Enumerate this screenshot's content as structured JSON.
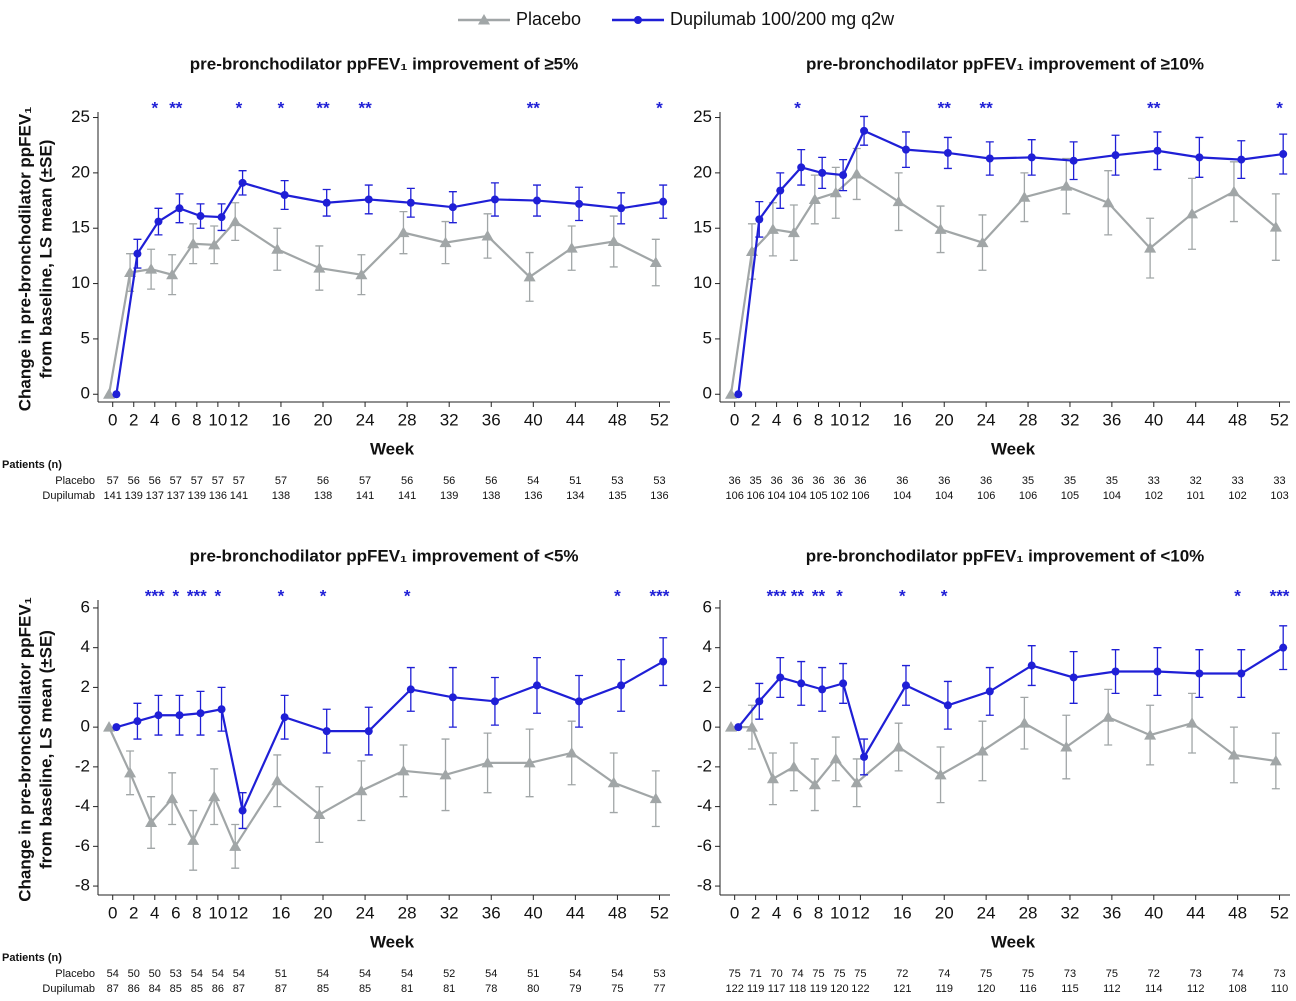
{
  "legend": [
    {
      "name": "Placebo",
      "color": "#a1a6a7",
      "marker": "triangle"
    },
    {
      "name": "Dupilumab 100/200 mg q2w",
      "color": "#1f1fd6",
      "marker": "circle"
    }
  ],
  "chart_data": [
    {
      "type": "line",
      "title": "pre-bronchodilator ppFEV₁ improvement of ≥5%",
      "ylabel": [
        "Change in pre-bronchodilator ppFEV₁",
        "from baseline, LS mean (±SE)"
      ],
      "xlabel": "Week",
      "x": [
        0,
        2,
        4,
        6,
        8,
        10,
        12,
        16,
        20,
        24,
        28,
        32,
        36,
        40,
        44,
        48,
        52
      ],
      "xlim": [
        -1.4,
        53
      ],
      "xticks": [
        0,
        2,
        4,
        6,
        8,
        10,
        12,
        16,
        20,
        24,
        28,
        32,
        36,
        40,
        44,
        48,
        52
      ],
      "ylim": [
        -0.7,
        25.5
      ],
      "yticks": [
        0,
        5,
        10,
        15,
        20,
        25
      ],
      "series": [
        {
          "color": "#a1a6a7",
          "marker": "triangle",
          "values": [
            0,
            11.0,
            11.3,
            10.8,
            13.6,
            13.5,
            15.6,
            13.1,
            11.4,
            10.8,
            14.6,
            13.7,
            14.3,
            10.6,
            13.2,
            13.8,
            11.9
          ],
          "errors": [
            null,
            1.7,
            1.8,
            1.8,
            1.8,
            1.7,
            1.7,
            1.9,
            2.0,
            1.8,
            1.9,
            1.9,
            2.0,
            2.2,
            2.0,
            2.3,
            2.1
          ]
        },
        {
          "color": "#1f1fd6",
          "marker": "circle",
          "values": [
            0,
            12.7,
            15.6,
            16.8,
            16.1,
            16.0,
            19.1,
            18.0,
            17.3,
            17.6,
            17.3,
            16.9,
            17.6,
            17.5,
            17.2,
            16.8,
            17.4
          ],
          "errors": [
            null,
            1.3,
            1.2,
            1.3,
            1.1,
            1.2,
            1.1,
            1.3,
            1.2,
            1.3,
            1.3,
            1.4,
            1.5,
            1.4,
            1.5,
            1.4,
            1.5
          ]
        }
      ],
      "significance": [
        {
          "x": 4,
          "label": "*"
        },
        {
          "x": 6,
          "label": "**"
        },
        {
          "x": 12,
          "label": "*"
        },
        {
          "x": 16,
          "label": "*"
        },
        {
          "x": 20,
          "label": "**"
        },
        {
          "x": 24,
          "label": "**"
        },
        {
          "x": 40,
          "label": "**"
        },
        {
          "x": 52,
          "label": "*"
        }
      ],
      "patients": {
        "title": "Patients (n)",
        "rows": [
          {
            "label": "Placebo",
            "values": [
              57,
              56,
              56,
              57,
              57,
              57,
              57,
              57,
              56,
              57,
              56,
              56,
              56,
              54,
              51,
              53,
              53
            ]
          },
          {
            "label": "Dupilumab",
            "values": [
              141,
              139,
              137,
              137,
              139,
              136,
              141,
              138,
              138,
              141,
              141,
              139,
              138,
              136,
              134,
              135,
              136
            ]
          }
        ]
      }
    },
    {
      "type": "line",
      "title": "pre-bronchodilator ppFEV₁ improvement of ≥10%",
      "xlabel": "Week",
      "x": [
        0,
        2,
        4,
        6,
        8,
        10,
        12,
        16,
        20,
        24,
        28,
        32,
        36,
        40,
        44,
        48,
        52
      ],
      "xlim": [
        -1.4,
        53
      ],
      "xticks": [
        0,
        2,
        4,
        6,
        8,
        10,
        12,
        16,
        20,
        24,
        28,
        32,
        36,
        40,
        44,
        48,
        52
      ],
      "ylim": [
        -0.7,
        25.5
      ],
      "yticks": [
        0,
        5,
        10,
        15,
        20,
        25
      ],
      "series": [
        {
          "color": "#a1a6a7",
          "marker": "triangle",
          "values": [
            0,
            12.9,
            14.9,
            14.6,
            17.6,
            18.2,
            19.9,
            17.4,
            14.9,
            13.7,
            17.8,
            18.8,
            17.3,
            13.2,
            16.3,
            18.3,
            15.1
          ],
          "errors": [
            null,
            2.5,
            2.4,
            2.5,
            2.2,
            2.3,
            2.3,
            2.6,
            2.1,
            2.5,
            2.2,
            2.5,
            2.9,
            2.7,
            3.2,
            2.7,
            3.0
          ]
        },
        {
          "color": "#1f1fd6",
          "marker": "circle",
          "values": [
            0,
            15.8,
            18.4,
            20.5,
            20.0,
            19.8,
            23.8,
            22.1,
            21.8,
            21.3,
            21.4,
            21.1,
            21.6,
            22.0,
            21.4,
            21.2,
            21.7
          ],
          "errors": [
            null,
            1.6,
            1.6,
            1.6,
            1.4,
            1.4,
            1.3,
            1.6,
            1.4,
            1.5,
            1.6,
            1.7,
            1.8,
            1.7,
            1.8,
            1.7,
            1.8
          ]
        }
      ],
      "significance": [
        {
          "x": 6,
          "label": "*"
        },
        {
          "x": 20,
          "label": "**"
        },
        {
          "x": 24,
          "label": "**"
        },
        {
          "x": 40,
          "label": "**"
        },
        {
          "x": 52,
          "label": "*"
        }
      ],
      "patients": {
        "rows": [
          {
            "values": [
              36,
              35,
              36,
              36,
              36,
              36,
              36,
              36,
              36,
              36,
              35,
              35,
              35,
              33,
              32,
              33,
              33
            ]
          },
          {
            "values": [
              106,
              106,
              104,
              104,
              105,
              102,
              106,
              104,
              104,
              106,
              106,
              105,
              104,
              102,
              101,
              102,
              103
            ]
          }
        ]
      }
    },
    {
      "type": "line",
      "title": "pre-bronchodilator ppFEV₁ improvement of <5%",
      "ylabel": [
        "Change in pre-bronchodilator ppFEV₁",
        "from baseline, LS mean (±SE)"
      ],
      "xlabel": "Week",
      "x": [
        0,
        2,
        4,
        6,
        8,
        10,
        12,
        16,
        20,
        24,
        28,
        32,
        36,
        40,
        44,
        48,
        52
      ],
      "xlim": [
        -1.4,
        53
      ],
      "xticks": [
        0,
        2,
        4,
        6,
        8,
        10,
        12,
        16,
        20,
        24,
        28,
        32,
        36,
        40,
        44,
        48,
        52
      ],
      "ylim": [
        -8.45,
        6.4
      ],
      "yticks": [
        -8,
        -6,
        -4,
        -2,
        0,
        2,
        4,
        6
      ],
      "series": [
        {
          "color": "#a1a6a7",
          "marker": "triangle",
          "values": [
            0,
            -2.3,
            -4.8,
            -3.6,
            -5.7,
            -3.5,
            -6.0,
            -2.7,
            -4.4,
            -3.2,
            -2.2,
            -2.4,
            -1.8,
            -1.8,
            -1.3,
            -2.8,
            -3.6
          ],
          "errors": [
            null,
            1.1,
            1.3,
            1.3,
            1.5,
            1.4,
            1.1,
            1.3,
            1.4,
            1.5,
            1.3,
            1.8,
            1.5,
            1.7,
            1.6,
            1.5,
            1.4
          ]
        },
        {
          "color": "#1f1fd6",
          "marker": "circle",
          "values": [
            0,
            0.3,
            0.6,
            0.6,
            0.7,
            0.9,
            -4.2,
            0.5,
            -0.2,
            -0.2,
            1.9,
            1.5,
            1.3,
            2.1,
            1.3,
            2.1,
            3.3
          ],
          "errors": [
            null,
            0.9,
            1.0,
            1.0,
            1.1,
            1.1,
            0.9,
            1.1,
            1.1,
            1.2,
            1.1,
            1.5,
            1.2,
            1.4,
            1.3,
            1.3,
            1.2
          ]
        }
      ],
      "significance": [
        {
          "x": 4,
          "label": "***"
        },
        {
          "x": 6,
          "label": "*"
        },
        {
          "x": 8,
          "label": "***"
        },
        {
          "x": 10,
          "label": "*"
        },
        {
          "x": 16,
          "label": "*"
        },
        {
          "x": 20,
          "label": "*"
        },
        {
          "x": 28,
          "label": "*"
        },
        {
          "x": 48,
          "label": "*"
        },
        {
          "x": 52,
          "label": "***"
        }
      ],
      "patients": {
        "title": "Patients (n)",
        "rows": [
          {
            "label": "Placebo",
            "values": [
              54,
              50,
              50,
              53,
              54,
              54,
              54,
              51,
              54,
              54,
              54,
              52,
              54,
              51,
              54,
              54,
              53
            ]
          },
          {
            "label": "Dupilumab",
            "values": [
              87,
              86,
              84,
              85,
              85,
              86,
              87,
              87,
              85,
              85,
              81,
              81,
              78,
              80,
              79,
              75,
              77
            ]
          }
        ]
      }
    },
    {
      "type": "line",
      "title": "pre-bronchodilator ppFEV₁ improvement of <10%",
      "xlabel": "Week",
      "x": [
        0,
        2,
        4,
        6,
        8,
        10,
        12,
        16,
        20,
        24,
        28,
        32,
        36,
        40,
        44,
        48,
        52
      ],
      "xlim": [
        -1.4,
        53
      ],
      "xticks": [
        0,
        2,
        4,
        6,
        8,
        10,
        12,
        16,
        20,
        24,
        28,
        32,
        36,
        40,
        44,
        48,
        52
      ],
      "ylim": [
        -8.45,
        6.4
      ],
      "yticks": [
        -8,
        -6,
        -4,
        -2,
        0,
        2,
        4,
        6
      ],
      "series": [
        {
          "color": "#a1a6a7",
          "marker": "triangle",
          "values": [
            0,
            0,
            -2.6,
            -2.0,
            -2.9,
            -1.6,
            -2.8,
            -1.0,
            -2.4,
            -1.2,
            0.2,
            -1.0,
            0.5,
            -0.4,
            0.2,
            -1.4,
            -1.7
          ],
          "errors": [
            null,
            1.1,
            1.3,
            1.2,
            1.3,
            1.1,
            1.2,
            1.2,
            1.4,
            1.5,
            1.3,
            1.6,
            1.4,
            1.5,
            1.5,
            1.4,
            1.4
          ]
        },
        {
          "color": "#1f1fd6",
          "marker": "circle",
          "values": [
            0,
            1.3,
            2.5,
            2.2,
            1.9,
            2.2,
            -1.5,
            2.1,
            1.1,
            1.8,
            3.1,
            2.5,
            2.8,
            2.8,
            2.7,
            2.7,
            4.0
          ],
          "errors": [
            null,
            0.9,
            1.0,
            1.1,
            1.1,
            1.0,
            0.9,
            1.0,
            1.2,
            1.2,
            1.0,
            1.3,
            1.1,
            1.2,
            1.2,
            1.2,
            1.1
          ]
        }
      ],
      "significance": [
        {
          "x": 4,
          "label": "***"
        },
        {
          "x": 6,
          "label": "**"
        },
        {
          "x": 8,
          "label": "**"
        },
        {
          "x": 10,
          "label": "*"
        },
        {
          "x": 16,
          "label": "*"
        },
        {
          "x": 20,
          "label": "*"
        },
        {
          "x": 48,
          "label": "*"
        },
        {
          "x": 52,
          "label": "***"
        }
      ],
      "patients": {
        "rows": [
          {
            "values": [
              75,
              71,
              70,
              74,
              75,
              75,
              75,
              72,
              74,
              75,
              75,
              73,
              75,
              72,
              73,
              74,
              73
            ]
          },
          {
            "values": [
              122,
              119,
              117,
              118,
              119,
              120,
              122,
              121,
              119,
              120,
              116,
              115,
              112,
              114,
              112,
              108,
              110
            ]
          }
        ]
      }
    }
  ]
}
